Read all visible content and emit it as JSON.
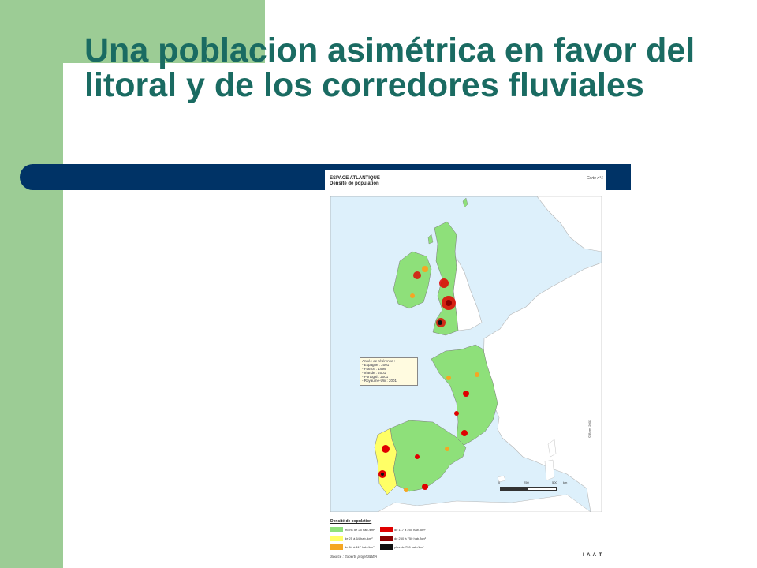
{
  "slide": {
    "title": "Una poblacion asimétrica en favor del litoral y de los corredores fluviales",
    "colors": {
      "accent_green": "#9ccc95",
      "title_teal": "#1a6b62",
      "bar_navy": "#003366"
    }
  },
  "map": {
    "title": "ESPACE ATLANTIQUE",
    "subtitle": "Densité de population",
    "map_number": "Carte n°1",
    "reference_title": "Année de référence :",
    "reference_lines": [
      "- Espagne : 2001",
      "- France : 1999",
      "- Irlande : 2001",
      "- Portugal : 2001",
      "- Royaume-Uni : 2001"
    ],
    "copyright": "© Bees 2003",
    "scale_labels": [
      "0",
      "250",
      "500",
      "km"
    ],
    "legend_title": "Densité de population",
    "legend": [
      {
        "label": "moins de 25 hab./km²",
        "color": "#8ee07a"
      },
      {
        "label": "de 25 à 64 hab./km²",
        "color": "#ffff66"
      },
      {
        "label": "de 64 à 117 hab./km²",
        "color": "#f5a623"
      },
      {
        "label": "de 117 à 250 hab./km²",
        "color": "#e00000"
      },
      {
        "label": "de 250 à 750 hab./km²",
        "color": "#8b0000"
      },
      {
        "label": "plus de 750 hab./km²",
        "color": "#111111"
      }
    ],
    "source": "Source : Experts projet SDEA",
    "logo": "I A A T"
  }
}
